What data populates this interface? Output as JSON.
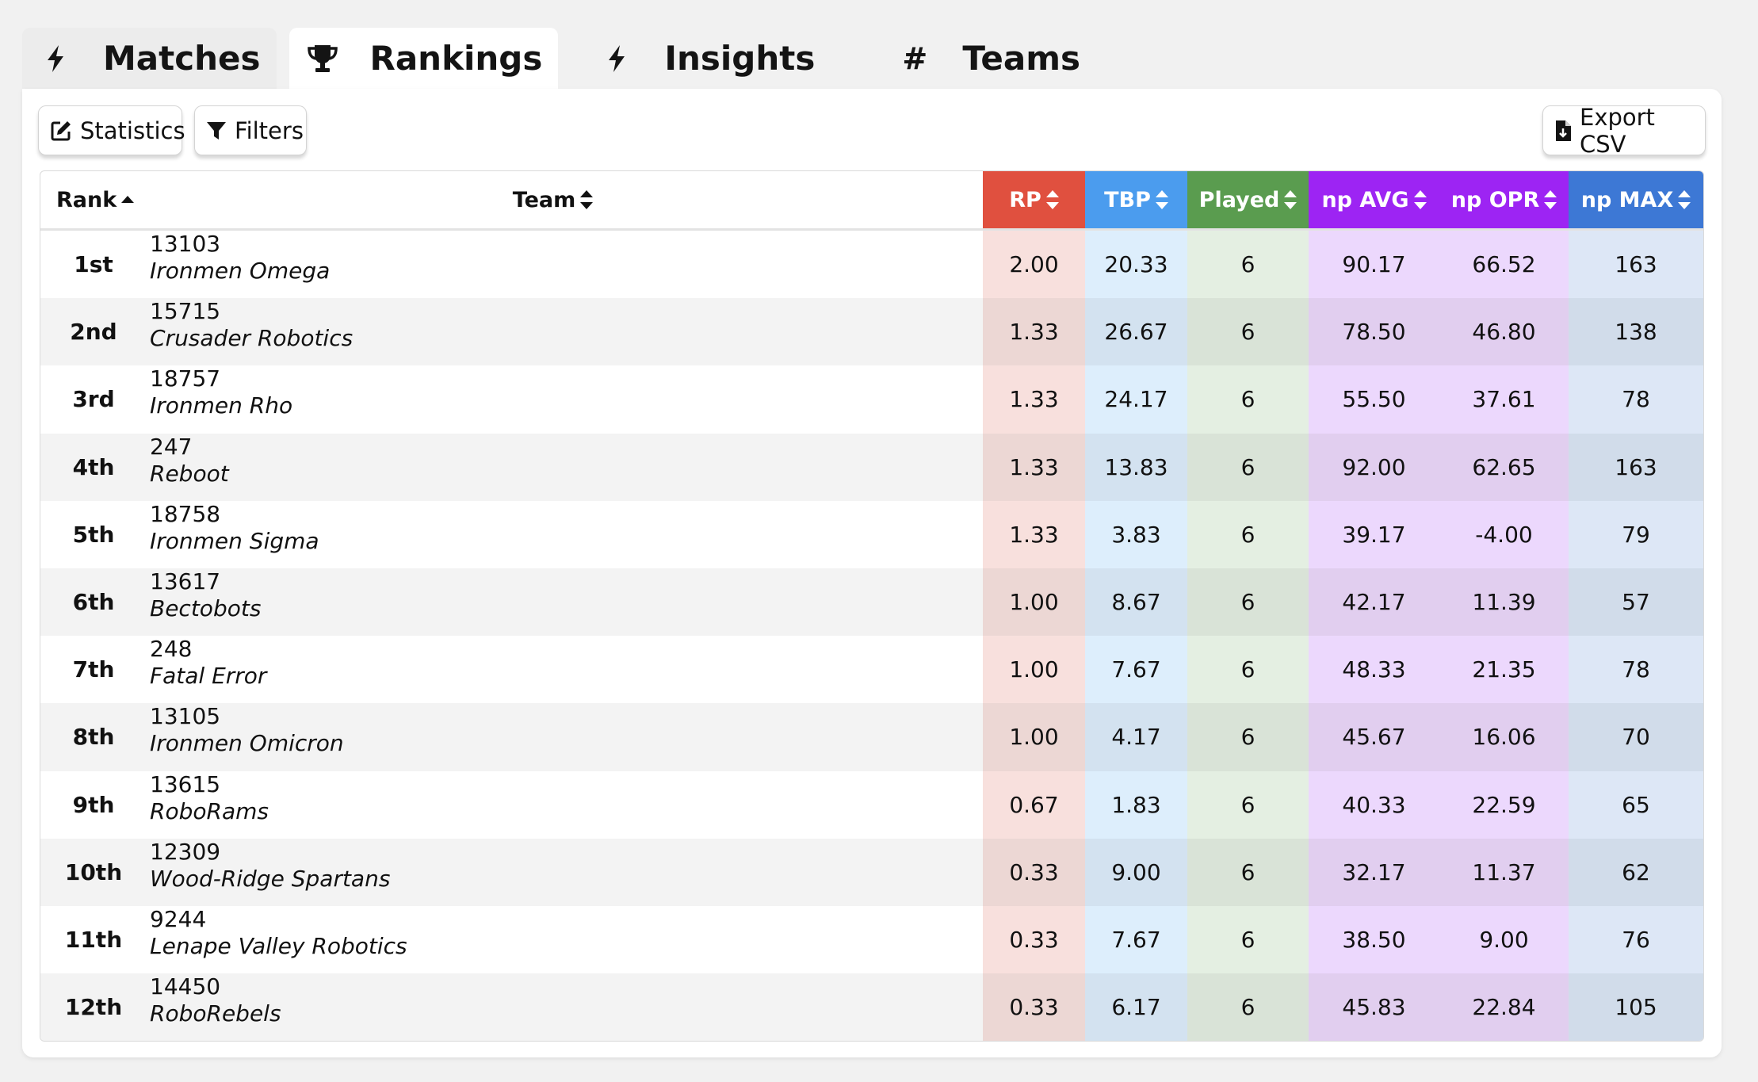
{
  "tabs": [
    {
      "label": "Matches",
      "icon": "bolt-icon"
    },
    {
      "label": "Rankings",
      "icon": "trophy-icon"
    },
    {
      "label": "Insights",
      "icon": "bolt-icon"
    },
    {
      "label": "Teams",
      "icon": "hash-icon",
      "glyph": "#"
    }
  ],
  "active_tab": "Rankings",
  "toolbar": {
    "statistics_label": "Statistics",
    "filters_label": "Filters",
    "export_label": "Export CSV"
  },
  "table": {
    "columns": [
      {
        "key": "rank",
        "label": "Rank",
        "sort": "ascending"
      },
      {
        "key": "team",
        "label": "Team",
        "sort": "none"
      },
      {
        "key": "rp",
        "label": "RP",
        "sort": "none",
        "header_color": "#e0503f",
        "cell_color_odd": "#f8e0dd",
        "cell_color_even": "#ecd7d4"
      },
      {
        "key": "tbp",
        "label": "TBP",
        "sort": "none",
        "header_color": "#4b9cee",
        "cell_color_odd": "#ddeefc",
        "cell_color_even": "#d3e2f0"
      },
      {
        "key": "played",
        "label": "Played",
        "sort": "none",
        "header_color": "#5a9c4f",
        "cell_color_odd": "#e4efe2",
        "cell_color_even": "#d9e3d7"
      },
      {
        "key": "np_avg",
        "label": "np AVG",
        "sort": "none",
        "header_color": "#9d24f3",
        "cell_color_odd": "#ecd8fd",
        "cell_color_even": "#e1ceef"
      },
      {
        "key": "np_opr",
        "label": "np OPR",
        "sort": "none",
        "header_color": "#9d24f3",
        "cell_color_odd": "#ecd8fd",
        "cell_color_even": "#e1ceef"
      },
      {
        "key": "np_max",
        "label": "np MAX",
        "sort": "none",
        "header_color": "#3d78d5",
        "cell_color_odd": "#dde7f6",
        "cell_color_even": "#d1dcea"
      }
    ],
    "rows": [
      {
        "rank": "1st",
        "number": "13103",
        "name": "Ironmen Omega",
        "rp": "2.00",
        "tbp": "20.33",
        "played": "6",
        "np_avg": "90.17",
        "np_opr": "66.52",
        "np_max": "163"
      },
      {
        "rank": "2nd",
        "number": "15715",
        "name": "Crusader Robotics",
        "rp": "1.33",
        "tbp": "26.67",
        "played": "6",
        "np_avg": "78.50",
        "np_opr": "46.80",
        "np_max": "138"
      },
      {
        "rank": "3rd",
        "number": "18757",
        "name": "Ironmen Rho",
        "rp": "1.33",
        "tbp": "24.17",
        "played": "6",
        "np_avg": "55.50",
        "np_opr": "37.61",
        "np_max": "78"
      },
      {
        "rank": "4th",
        "number": "247",
        "name": "Reboot",
        "rp": "1.33",
        "tbp": "13.83",
        "played": "6",
        "np_avg": "92.00",
        "np_opr": "62.65",
        "np_max": "163"
      },
      {
        "rank": "5th",
        "number": "18758",
        "name": "Ironmen Sigma",
        "rp": "1.33",
        "tbp": "3.83",
        "played": "6",
        "np_avg": "39.17",
        "np_opr": "-4.00",
        "np_max": "79"
      },
      {
        "rank": "6th",
        "number": "13617",
        "name": "Bectobots",
        "rp": "1.00",
        "tbp": "8.67",
        "played": "6",
        "np_avg": "42.17",
        "np_opr": "11.39",
        "np_max": "57"
      },
      {
        "rank": "7th",
        "number": "248",
        "name": "Fatal Error",
        "rp": "1.00",
        "tbp": "7.67",
        "played": "6",
        "np_avg": "48.33",
        "np_opr": "21.35",
        "np_max": "78"
      },
      {
        "rank": "8th",
        "number": "13105",
        "name": "Ironmen Omicron",
        "rp": "1.00",
        "tbp": "4.17",
        "played": "6",
        "np_avg": "45.67",
        "np_opr": "16.06",
        "np_max": "70"
      },
      {
        "rank": "9th",
        "number": "13615",
        "name": "RoboRams",
        "rp": "0.67",
        "tbp": "1.83",
        "played": "6",
        "np_avg": "40.33",
        "np_opr": "22.59",
        "np_max": "65"
      },
      {
        "rank": "10th",
        "number": "12309",
        "name": "Wood-Ridge Spartans",
        "rp": "0.33",
        "tbp": "9.00",
        "played": "6",
        "np_avg": "32.17",
        "np_opr": "11.37",
        "np_max": "62"
      },
      {
        "rank": "11th",
        "number": "9244",
        "name": "Lenape Valley Robotics",
        "rp": "0.33",
        "tbp": "7.67",
        "played": "6",
        "np_avg": "38.50",
        "np_opr": "9.00",
        "np_max": "76"
      },
      {
        "rank": "12th",
        "number": "14450",
        "name": "RoboRebels",
        "rp": "0.33",
        "tbp": "6.17",
        "played": "6",
        "np_avg": "45.83",
        "np_opr": "22.84",
        "np_max": "105"
      }
    ]
  }
}
